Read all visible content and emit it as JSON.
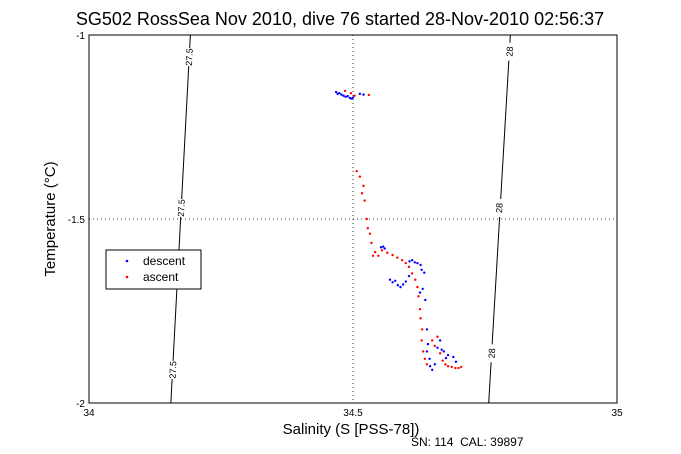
{
  "chart_data": {
    "type": "scatter",
    "title": "SG502 RossSea Nov 2010, dive 76 started 28-Nov-2010 02:56:37",
    "xlabel": "Salinity (S [PSS-78])",
    "ylabel": "Temperature (°C)",
    "xlim": [
      34,
      35
    ],
    "ylim": [
      -2,
      -1
    ],
    "xticks": [
      "34",
      "34.5",
      "35"
    ],
    "yticks": [
      "-1",
      "-1.5",
      "-2"
    ],
    "grid": "dotted at 34.5 and -1.5",
    "legend": {
      "placement": "middle-left",
      "entries": [
        "descent",
        "ascent"
      ]
    },
    "footer": "SN: 114  CAL: 39897",
    "isopycnals": [
      {
        "label": "27.5",
        "from": [
          34.155,
          -2.0
        ],
        "to": [
          34.192,
          -1.0
        ],
        "label_points": [
          [
            34.19,
            -1.06
          ],
          [
            34.175,
            -1.47
          ],
          [
            34.159,
            -1.91
          ]
        ]
      },
      {
        "label": "28",
        "from": [
          34.757,
          -2.0
        ],
        "to": [
          34.798,
          -1.0
        ],
        "label_points": [
          [
            34.797,
            -1.045
          ],
          [
            34.777,
            -1.47
          ],
          [
            34.763,
            -1.865
          ]
        ]
      }
    ],
    "series": [
      {
        "name": "descent",
        "color": "#0000ff",
        "points": [
          [
            34.468,
            -1.155
          ],
          [
            34.471,
            -1.16
          ],
          [
            34.474,
            -1.158
          ],
          [
            34.478,
            -1.162
          ],
          [
            34.482,
            -1.165
          ],
          [
            34.486,
            -1.168
          ],
          [
            34.49,
            -1.166
          ],
          [
            34.494,
            -1.171
          ],
          [
            34.497,
            -1.173
          ],
          [
            34.5,
            -1.17
          ],
          [
            34.513,
            -1.16
          ],
          [
            34.52,
            -1.162
          ],
          [
            34.553,
            -1.577
          ],
          [
            34.557,
            -1.575
          ],
          [
            34.56,
            -1.58
          ],
          [
            34.607,
            -1.615
          ],
          [
            34.612,
            -1.612
          ],
          [
            34.617,
            -1.618
          ],
          [
            34.622,
            -1.62
          ],
          [
            34.628,
            -1.625
          ],
          [
            34.63,
            -1.638
          ],
          [
            34.635,
            -1.646
          ],
          [
            34.57,
            -1.665
          ],
          [
            34.575,
            -1.672
          ],
          [
            34.58,
            -1.668
          ],
          [
            34.585,
            -1.68
          ],
          [
            34.59,
            -1.685
          ],
          [
            34.595,
            -1.678
          ],
          [
            34.6,
            -1.67
          ],
          [
            34.606,
            -1.655
          ],
          [
            34.627,
            -1.7
          ],
          [
            34.632,
            -1.69
          ],
          [
            34.637,
            -1.72
          ],
          [
            34.64,
            -1.8
          ],
          [
            34.642,
            -1.84
          ],
          [
            34.64,
            -1.86
          ],
          [
            34.645,
            -1.88
          ],
          [
            34.646,
            -1.9
          ],
          [
            34.65,
            -1.91
          ],
          [
            34.655,
            -1.895
          ],
          [
            34.66,
            -1.85
          ],
          [
            34.665,
            -1.83
          ],
          [
            34.668,
            -1.855
          ],
          [
            34.672,
            -1.86
          ],
          [
            34.676,
            -1.878
          ],
          [
            34.68,
            -1.87
          ],
          [
            34.69,
            -1.875
          ],
          [
            34.695,
            -1.888
          ]
        ]
      },
      {
        "name": "ascent",
        "color": "#ff0000",
        "points": [
          [
            34.485,
            -1.152
          ],
          [
            34.496,
            -1.158
          ],
          [
            34.503,
            -1.165
          ],
          [
            34.53,
            -1.163
          ],
          [
            34.507,
            -1.37
          ],
          [
            34.513,
            -1.385
          ],
          [
            34.52,
            -1.41
          ],
          [
            34.517,
            -1.43
          ],
          [
            34.522,
            -1.45
          ],
          [
            34.526,
            -1.5
          ],
          [
            34.528,
            -1.525
          ],
          [
            34.532,
            -1.54
          ],
          [
            34.535,
            -1.565
          ],
          [
            34.538,
            -1.6
          ],
          [
            34.542,
            -1.59
          ],
          [
            34.548,
            -1.6
          ],
          [
            34.555,
            -1.585
          ],
          [
            34.565,
            -1.592
          ],
          [
            34.575,
            -1.598
          ],
          [
            34.584,
            -1.605
          ],
          [
            34.593,
            -1.612
          ],
          [
            34.6,
            -1.62
          ],
          [
            34.606,
            -1.63
          ],
          [
            34.612,
            -1.648
          ],
          [
            34.618,
            -1.665
          ],
          [
            34.622,
            -1.685
          ],
          [
            34.624,
            -1.71
          ],
          [
            34.627,
            -1.745
          ],
          [
            34.628,
            -1.77
          ],
          [
            34.631,
            -1.8
          ],
          [
            34.63,
            -1.83
          ],
          [
            34.633,
            -1.86
          ],
          [
            34.636,
            -1.88
          ],
          [
            34.64,
            -1.895
          ],
          [
            34.65,
            -1.83
          ],
          [
            34.655,
            -1.845
          ],
          [
            34.66,
            -1.82
          ],
          [
            34.665,
            -1.865
          ],
          [
            34.67,
            -1.885
          ],
          [
            34.675,
            -1.895
          ],
          [
            34.68,
            -1.9
          ],
          [
            34.687,
            -1.902
          ],
          [
            34.694,
            -1.905
          ],
          [
            34.7,
            -1.905
          ],
          [
            34.705,
            -1.902
          ]
        ]
      }
    ]
  }
}
